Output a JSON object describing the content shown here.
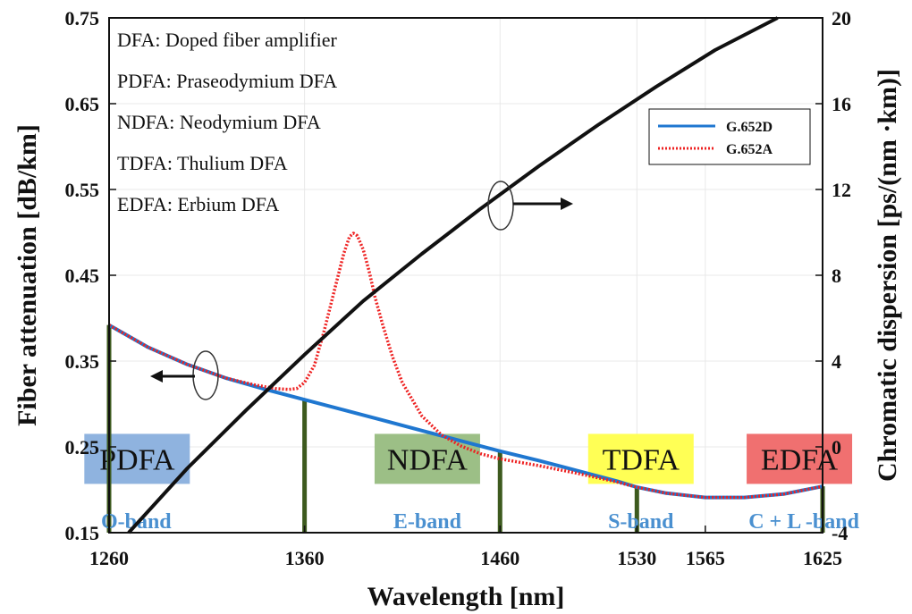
{
  "chart_data": {
    "type": "line",
    "xlabel": "Wavelength [nm]",
    "ylabel_left": "Fiber attenuation [dB/km]",
    "ylabel_right": "Chromatic dispersion [ps/(nm ·km)]",
    "x_ticks": [
      1260,
      1360,
      1460,
      1530,
      1565,
      1625
    ],
    "y_left_ticks": [
      "0.15",
      "0.25",
      "0.35",
      "0.45",
      "0.55",
      "0.65",
      "0.75"
    ],
    "y_right_ticks": [
      "-4",
      "0",
      "4",
      "8",
      "12",
      "16",
      "20"
    ],
    "xlim": [
      1260,
      1625
    ],
    "ylim_left": [
      0.15,
      0.75
    ],
    "ylim_right": [
      -4,
      20
    ],
    "legend_position": "top-right",
    "series": [
      {
        "name": "G.652D",
        "axis": "left",
        "color": "#1f77d0",
        "style": "solid",
        "x": [
          1260,
          1280,
          1300,
          1320,
          1340,
          1360,
          1380,
          1400,
          1420,
          1440,
          1460,
          1480,
          1500,
          1520,
          1530,
          1545,
          1565,
          1585,
          1605,
          1625
        ],
        "values": [
          0.392,
          0.366,
          0.346,
          0.33,
          0.317,
          0.305,
          0.293,
          0.281,
          0.269,
          0.257,
          0.245,
          0.234,
          0.222,
          0.21,
          0.203,
          0.196,
          0.191,
          0.191,
          0.195,
          0.204
        ]
      },
      {
        "name": "G.652A",
        "axis": "left",
        "color": "#ee2222",
        "style": "dotted",
        "x": [
          1260,
          1280,
          1300,
          1320,
          1335,
          1345,
          1352,
          1356,
          1360,
          1365,
          1370,
          1375,
          1380,
          1383,
          1385,
          1387,
          1390,
          1393,
          1396,
          1400,
          1405,
          1410,
          1420,
          1430,
          1440,
          1450,
          1460,
          1480,
          1500,
          1520,
          1530,
          1545,
          1565,
          1585,
          1605,
          1625
        ],
        "values": [
          0.392,
          0.366,
          0.346,
          0.33,
          0.322,
          0.318,
          0.317,
          0.318,
          0.325,
          0.345,
          0.385,
          0.43,
          0.475,
          0.495,
          0.499,
          0.496,
          0.48,
          0.455,
          0.425,
          0.392,
          0.355,
          0.325,
          0.286,
          0.264,
          0.251,
          0.242,
          0.236,
          0.228,
          0.219,
          0.209,
          0.203,
          0.196,
          0.191,
          0.191,
          0.195,
          0.204
        ]
      },
      {
        "name": "",
        "axis": "right",
        "color": "#111111",
        "style": "solid",
        "x": [
          1270,
          1300,
          1330,
          1360,
          1390,
          1420,
          1450,
          1480,
          1510,
          1540,
          1570,
          1602
        ],
        "values": [
          -4.0,
          -1.0,
          1.7,
          4.3,
          6.8,
          9.0,
          11.1,
          13.1,
          15.0,
          16.8,
          18.5,
          20.0
        ]
      }
    ],
    "band_boundaries": [
      1260,
      1360,
      1460,
      1530,
      1625
    ],
    "bands": [
      {
        "label": "O-band",
        "x_center": 1310
      },
      {
        "label": "E-band",
        "x_center": 1410
      },
      {
        "label": "S-band",
        "x_center": 1495
      },
      {
        "label": "C + L -band",
        "x_center": 1577
      }
    ],
    "amplifiers": [
      {
        "label": "PDFA",
        "x_center": 1310,
        "y": 0.236,
        "color": "#8fb3df"
      },
      {
        "label": "NDFA",
        "x_center": 1410,
        "y": 0.236,
        "color": "#9cbf86"
      },
      {
        "label": "TDFA",
        "x_center": 1495,
        "y": 0.236,
        "color": "#ffff55"
      },
      {
        "label": "EDFA",
        "x_center": 1577,
        "y": 0.236,
        "color": "#f07070"
      }
    ],
    "notes": [
      "DFA:   Doped fiber amplifier",
      "PDFA: Praseodymium  DFA",
      "NDFA: Neodymium  DFA",
      "TDFA: Thulium  DFA",
      "EDFA: Erbium  DFA"
    ],
    "band_line_color": "#3d5a1e",
    "band_text_color": "#4a90d0"
  }
}
